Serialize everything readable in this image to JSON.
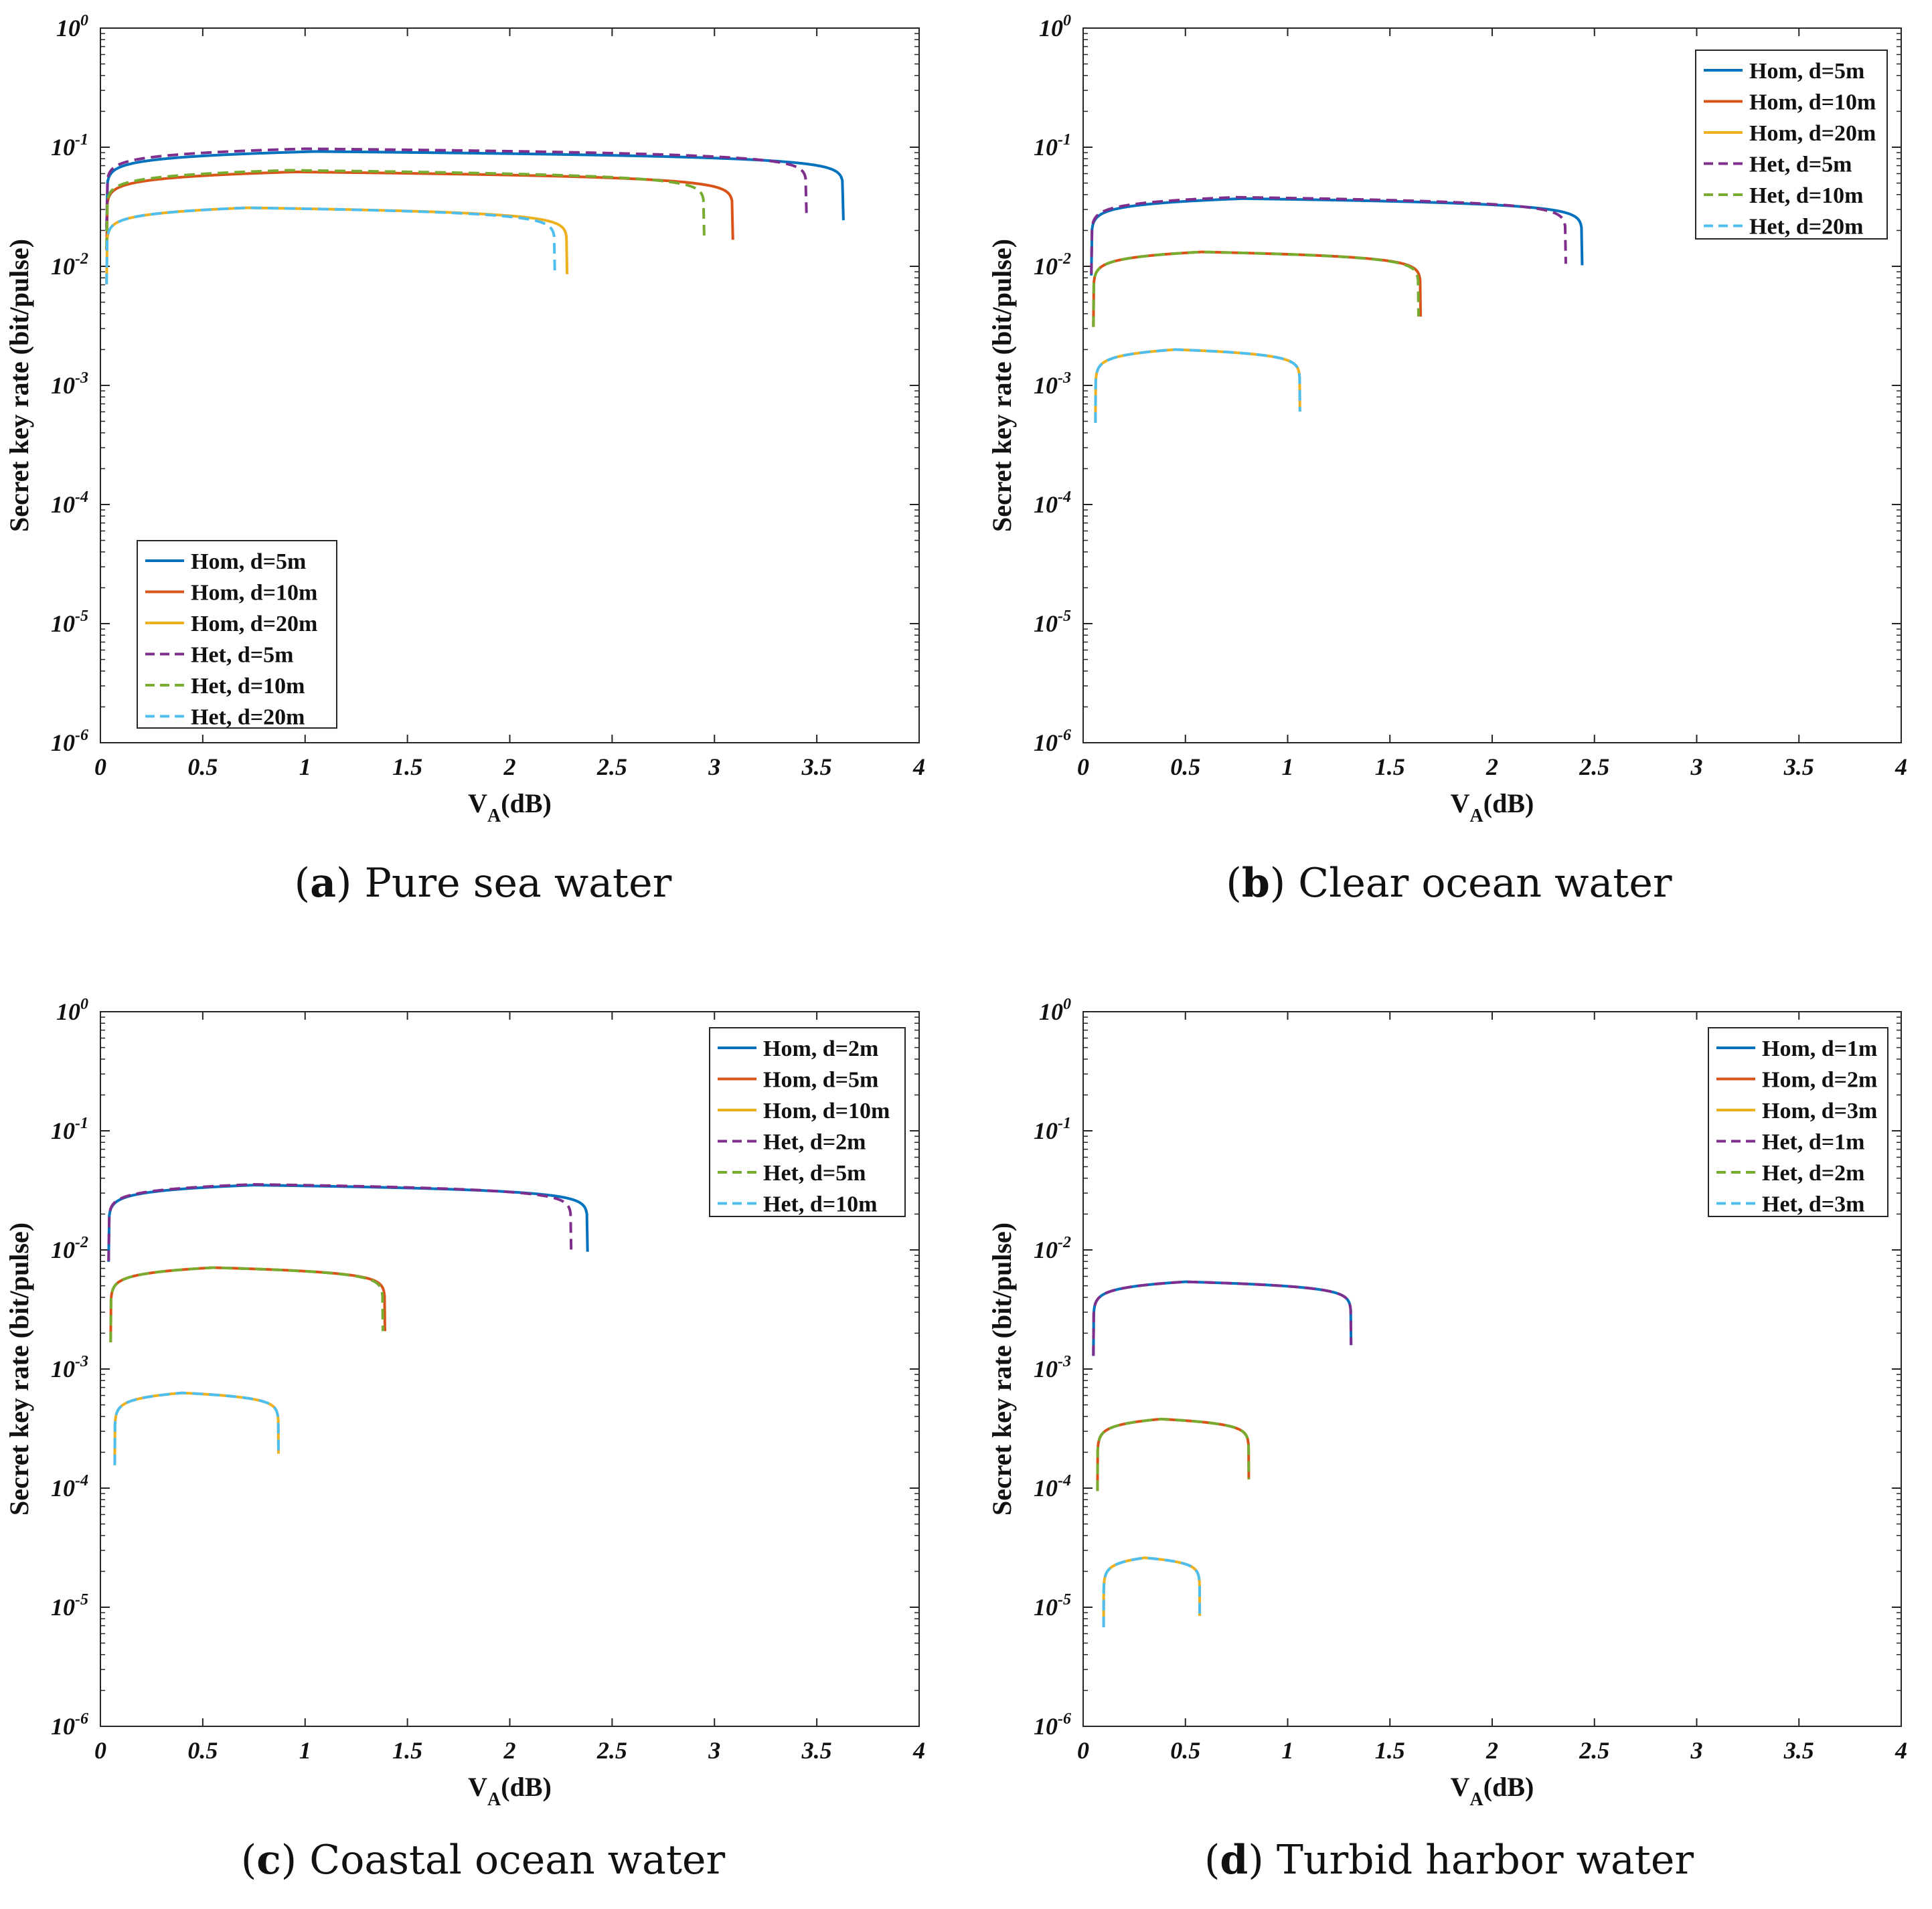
{
  "colors": {
    "hom_small": "#0072BD",
    "hom_mid": "#D95319",
    "hom_large": "#EDB120",
    "het_small": "#7E2F8E",
    "het_mid": "#77AC30",
    "het_large": "#4DBEEE"
  },
  "chart_data": [
    {
      "type": "line",
      "panel": "a",
      "caption_letter": "a",
      "caption_text": "Pure sea water",
      "xlabel": "V",
      "xlabel_sub": "A",
      "xlabel_unit": "(dB)",
      "ylabel": "Secret key rate (bit/pulse)",
      "xlim": [
        0,
        4
      ],
      "ylim_exponent": [
        -6,
        0
      ],
      "yscale": "log",
      "x_ticks": [
        "0",
        "0.5",
        "1",
        "1.5",
        "2",
        "2.5",
        "3",
        "3.5",
        "4"
      ],
      "y_tick_exponents": [
        "0",
        "-1",
        "-2",
        "-3",
        "-4",
        "-5",
        "-6"
      ],
      "legend_position": "bottom-left",
      "series": [
        {
          "name": "Hom, d=5m",
          "style": "solid",
          "color_key": "hom_small",
          "x0": 0.03,
          "xpeak": 1.05,
          "peak": 0.092,
          "xmax": 3.63
        },
        {
          "name": "Hom, d=10m",
          "style": "solid",
          "color_key": "hom_mid",
          "x0": 0.03,
          "xpeak": 0.95,
          "peak": 0.062,
          "xmax": 3.09
        },
        {
          "name": "Hom, d=20m",
          "style": "solid",
          "color_key": "hom_large",
          "x0": 0.03,
          "xpeak": 0.72,
          "peak": 0.031,
          "xmax": 2.28
        },
        {
          "name": "Het, d=5m",
          "style": "dashed",
          "color_key": "het_small",
          "x0": 0.03,
          "xpeak": 1.0,
          "peak": 0.097,
          "xmax": 3.45
        },
        {
          "name": "Het, d=10m",
          "style": "dashed",
          "color_key": "het_mid",
          "x0": 0.03,
          "xpeak": 0.92,
          "peak": 0.064,
          "xmax": 2.95
        },
        {
          "name": "Het, d=20m",
          "style": "dashed",
          "color_key": "het_large",
          "x0": 0.03,
          "xpeak": 0.72,
          "peak": 0.031,
          "xmax": 2.22
        }
      ]
    },
    {
      "type": "line",
      "panel": "b",
      "caption_letter": "b",
      "caption_text": "Clear ocean water",
      "xlabel": "V",
      "xlabel_sub": "A",
      "xlabel_unit": "(dB)",
      "ylabel": "Secret key rate (bit/pulse)",
      "xlim": [
        0,
        4
      ],
      "ylim_exponent": [
        -6,
        0
      ],
      "yscale": "log",
      "x_ticks": [
        "0",
        "0.5",
        "1",
        "1.5",
        "2",
        "2.5",
        "3",
        "3.5",
        "4"
      ],
      "y_tick_exponents": [
        "0",
        "-1",
        "-2",
        "-3",
        "-4",
        "-5",
        "-6"
      ],
      "legend_position": "top-right",
      "series": [
        {
          "name": "Hom, d=5m",
          "style": "solid",
          "color_key": "hom_small",
          "x0": 0.04,
          "xpeak": 0.78,
          "peak": 0.037,
          "xmax": 2.44
        },
        {
          "name": "Hom, d=10m",
          "style": "solid",
          "color_key": "hom_mid",
          "x0": 0.05,
          "xpeak": 0.58,
          "peak": 0.0132,
          "xmax": 1.65
        },
        {
          "name": "Hom, d=20m",
          "style": "solid",
          "color_key": "hom_large",
          "x0": 0.06,
          "xpeak": 0.45,
          "peak": 0.002,
          "xmax": 1.06
        },
        {
          "name": "Het, d=5m",
          "style": "dashed",
          "color_key": "het_small",
          "x0": 0.04,
          "xpeak": 0.75,
          "peak": 0.038,
          "xmax": 2.36
        },
        {
          "name": "Het, d=10m",
          "style": "dashed",
          "color_key": "het_mid",
          "x0": 0.05,
          "xpeak": 0.58,
          "peak": 0.0132,
          "xmax": 1.64
        },
        {
          "name": "Het, d=20m",
          "style": "dashed",
          "color_key": "het_large",
          "x0": 0.06,
          "xpeak": 0.45,
          "peak": 0.002,
          "xmax": 1.06
        }
      ]
    },
    {
      "type": "line",
      "panel": "c",
      "caption_letter": "c",
      "caption_text": "Coastal ocean water",
      "xlabel": "V",
      "xlabel_sub": "A",
      "xlabel_unit": "(dB)",
      "ylabel": "Secret key rate (bit/pulse)",
      "xlim": [
        0,
        4
      ],
      "ylim_exponent": [
        -6,
        0
      ],
      "yscale": "log",
      "x_ticks": [
        "0",
        "0.5",
        "1",
        "1.5",
        "2",
        "2.5",
        "3",
        "3.5",
        "4"
      ],
      "y_tick_exponents": [
        "0",
        "-1",
        "-2",
        "-3",
        "-4",
        "-5",
        "-6"
      ],
      "legend_position": "top-right",
      "series": [
        {
          "name": "Hom, d=2m",
          "style": "solid",
          "color_key": "hom_small",
          "x0": 0.04,
          "xpeak": 0.75,
          "peak": 0.035,
          "xmax": 2.38
        },
        {
          "name": "Hom, d=5m",
          "style": "solid",
          "color_key": "hom_mid",
          "x0": 0.05,
          "xpeak": 0.55,
          "peak": 0.0071,
          "xmax": 1.39
        },
        {
          "name": "Hom, d=10m",
          "style": "solid",
          "color_key": "hom_large",
          "x0": 0.07,
          "xpeak": 0.4,
          "peak": 0.00063,
          "xmax": 0.87
        },
        {
          "name": "Het, d=2m",
          "style": "dashed",
          "color_key": "het_small",
          "x0": 0.04,
          "xpeak": 0.75,
          "peak": 0.0355,
          "xmax": 2.3
        },
        {
          "name": "Het, d=5m",
          "style": "dashed",
          "color_key": "het_mid",
          "x0": 0.05,
          "xpeak": 0.55,
          "peak": 0.0071,
          "xmax": 1.38
        },
        {
          "name": "Het, d=10m",
          "style": "dashed",
          "color_key": "het_large",
          "x0": 0.07,
          "xpeak": 0.4,
          "peak": 0.00063,
          "xmax": 0.87
        }
      ]
    },
    {
      "type": "line",
      "panel": "d",
      "caption_letter": "d",
      "caption_text": "Turbid harbor water",
      "xlabel": "V",
      "xlabel_sub": "A",
      "xlabel_unit": "(dB)",
      "ylabel": "Secret key rate (bit/pulse)",
      "xlim": [
        0,
        4
      ],
      "ylim_exponent": [
        -6,
        0
      ],
      "yscale": "log",
      "x_ticks": [
        "0",
        "0.5",
        "1",
        "1.5",
        "2",
        "2.5",
        "3",
        "3.5",
        "4"
      ],
      "y_tick_exponents": [
        "0",
        "-1",
        "-2",
        "-3",
        "-4",
        "-5",
        "-6"
      ],
      "legend_position": "top-right",
      "series": [
        {
          "name": "Hom, d=1m",
          "style": "solid",
          "color_key": "hom_small",
          "x0": 0.05,
          "xpeak": 0.5,
          "peak": 0.0054,
          "xmax": 1.31
        },
        {
          "name": "Hom, d=2m",
          "style": "solid",
          "color_key": "hom_mid",
          "x0": 0.07,
          "xpeak": 0.38,
          "peak": 0.00038,
          "xmax": 0.81
        },
        {
          "name": "Hom, d=3m",
          "style": "solid",
          "color_key": "hom_large",
          "x0": 0.1,
          "xpeak": 0.3,
          "peak": 2.6e-05,
          "xmax": 0.57
        },
        {
          "name": "Het, d=1m",
          "style": "dashed",
          "color_key": "het_small",
          "x0": 0.05,
          "xpeak": 0.5,
          "peak": 0.0054,
          "xmax": 1.31
        },
        {
          "name": "Het, d=2m",
          "style": "dashed",
          "color_key": "het_mid",
          "x0": 0.07,
          "xpeak": 0.38,
          "peak": 0.00038,
          "xmax": 0.81
        },
        {
          "name": "Het, d=3m",
          "style": "dashed",
          "color_key": "het_large",
          "x0": 0.1,
          "xpeak": 0.3,
          "peak": 2.6e-05,
          "xmax": 0.57
        }
      ]
    }
  ]
}
